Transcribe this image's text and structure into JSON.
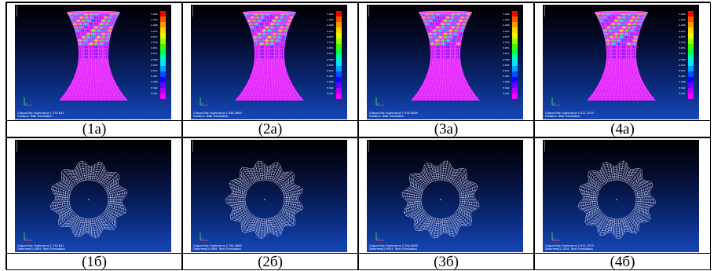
{
  "panels": [
    {
      "caption": "(1а)",
      "type": "side",
      "info1": "Output Set: Eigenvalue 1 370.641",
      "info2": "Contour: Total Translation"
    },
    {
      "caption": "(2а)",
      "type": "side",
      "info1": "Output Set: Eigenvalue 2 384.3665",
      "info2": "Contour: Total Translation"
    },
    {
      "caption": "(3а)",
      "type": "side",
      "info1": "Output Set: Eigenvalue 3 394.6289",
      "info2": "Contour: Total Translation"
    },
    {
      "caption": "(4а)",
      "type": "side",
      "info1": "Output Set: Eigenvalue 4 421.3733",
      "info2": "Contour: Total Translation"
    },
    {
      "caption": "(1б)",
      "type": "top",
      "info1": "Output Set: Eigenvalue 1 370.641",
      "info2": "Deformed(1.985): Total Translation"
    },
    {
      "caption": "(2б)",
      "type": "top",
      "info1": "Output Set: Eigenvalue 2 384.3665",
      "info2": "Deformed(1.986): Total Translation"
    },
    {
      "caption": "(3б)",
      "type": "top",
      "info1": "Output Set: Eigenvalue 3 394.6289",
      "info2": "Deformed(1.992): Total Translation"
    },
    {
      "caption": "(4б)",
      "type": "top",
      "info1": "Output Set: Eigenvalue 4 421.3733",
      "info2": "Deformed(1.105): Total Translation"
    }
  ],
  "legend_colors": [
    "#ff0000",
    "#ff5a00",
    "#ff9c00",
    "#ffd800",
    "#e4ff00",
    "#9cff00",
    "#3cff00",
    "#00ff5a",
    "#00ffb4",
    "#00e4ff",
    "#00a0ff",
    "#0050ff",
    "#1400ff",
    "#6400ff",
    "#b400ff",
    "#ff00ff"
  ],
  "legend_values": [
    "1.004",
    "1.022",
    "0.998",
    "0.912",
    "0.877",
    "0.793",
    "0.651",
    "0.611",
    "0.589",
    "0.545",
    "0.507",
    "0.487",
    "0.428",
    "0.362",
    "0.291"
  ],
  "colors": {
    "background_top": "#000000",
    "background_bottom": "#1647b8",
    "mesh_top": "#e8e8ff",
    "tower_base": "#ff00ff"
  }
}
